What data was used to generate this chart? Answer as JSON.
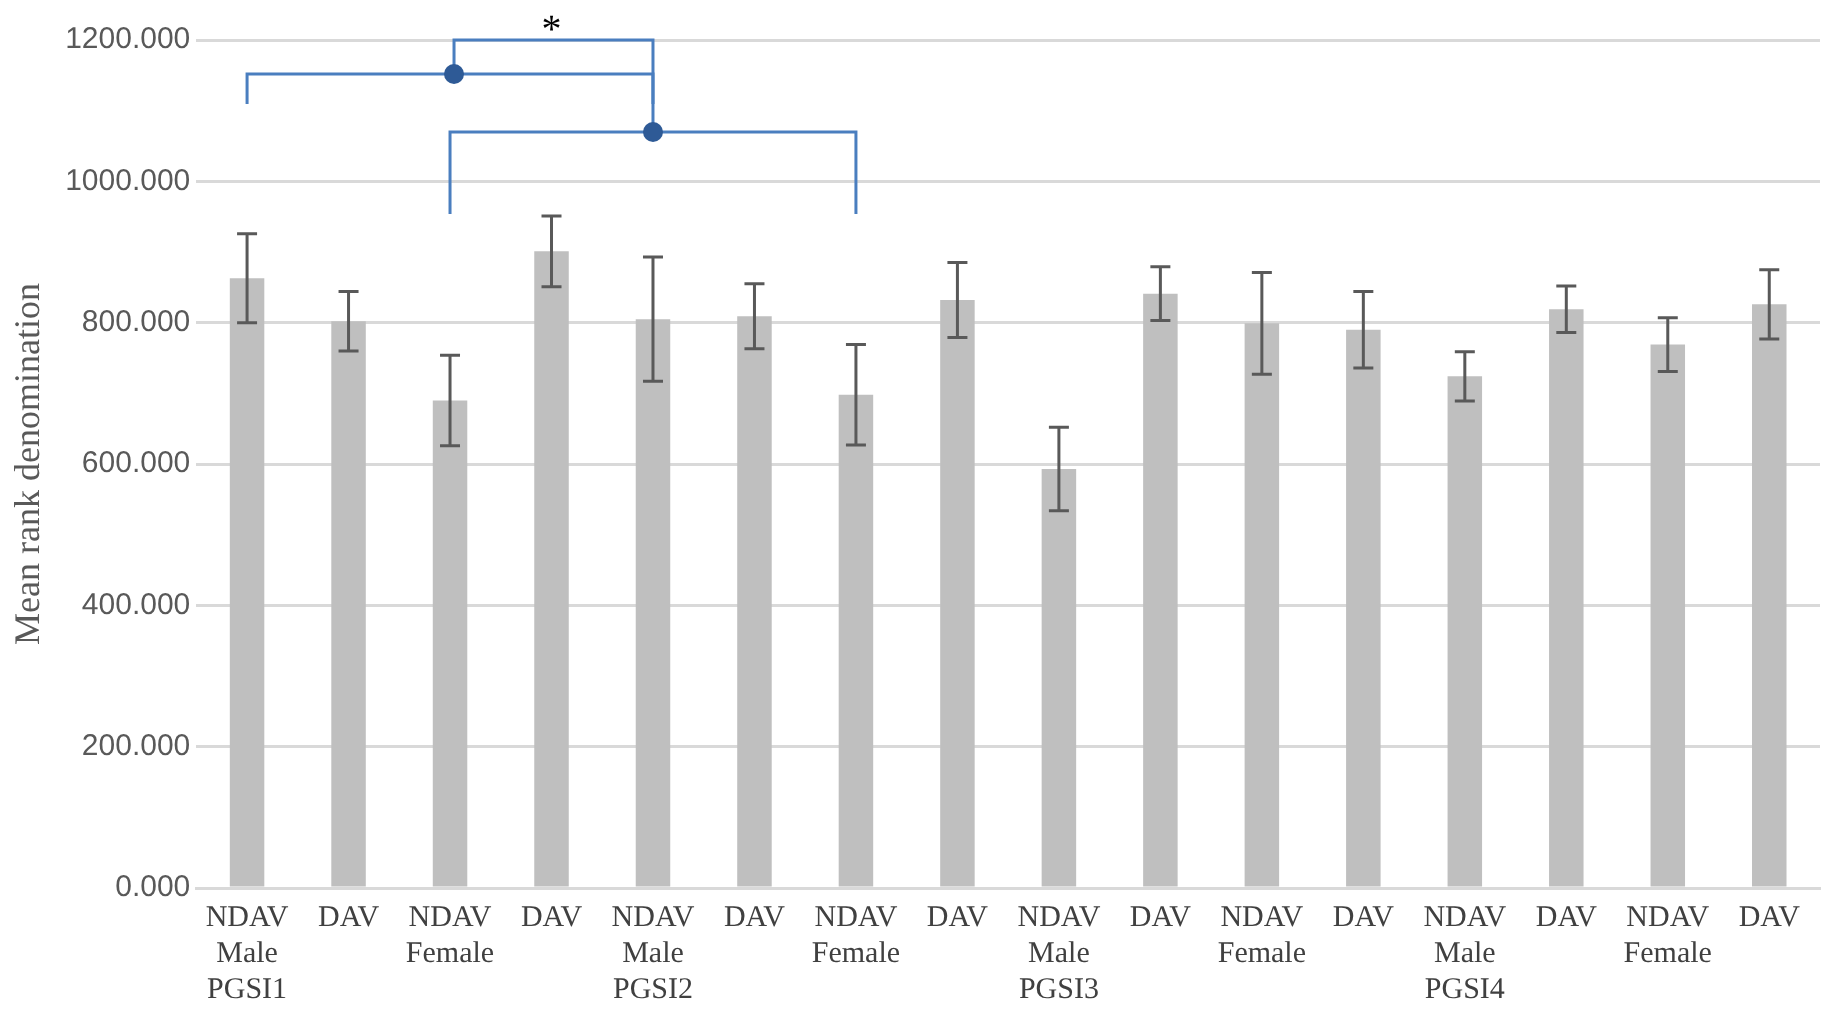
{
  "chart_data": {
    "type": "bar",
    "ylabel": "Mean rank denomination",
    "categories": [
      "NDAV\nMale\nPGSI1",
      "DAV",
      "NDAV\nFemale",
      "DAV",
      "NDAV\nMale\nPGSI2",
      "DAV",
      "NDAV\nFemale",
      "DAV",
      "NDAV\nMale\nPGSI3",
      "DAV",
      "NDAV\nFemale",
      "DAV",
      "NDAV\nMale\nPGSI4",
      "DAV",
      "NDAV\nFemale",
      "DAV"
    ],
    "values": [
      863,
      802,
      690,
      901,
      805,
      809,
      698,
      832,
      593,
      841,
      799,
      790,
      724,
      819,
      769,
      826
    ],
    "errors": [
      63,
      42,
      64,
      50,
      88,
      46,
      71,
      53,
      59,
      38,
      72,
      54,
      35,
      33,
      38,
      49
    ],
    "color": "#bfbfbf",
    "ylim": [
      0,
      1200
    ],
    "yticks": [
      {
        "value": 0,
        "label": "0.000"
      },
      {
        "value": 200,
        "label": "200.000"
      },
      {
        "value": 400,
        "label": "400.000"
      },
      {
        "value": 600,
        "label": "600.000"
      },
      {
        "value": 800,
        "label": "800.000"
      },
      {
        "value": 1000,
        "label": "1000.000"
      },
      {
        "value": 1200,
        "label": "1200.000"
      }
    ],
    "grid": "y",
    "legend": false,
    "annotations": [
      "*"
    ]
  }
}
